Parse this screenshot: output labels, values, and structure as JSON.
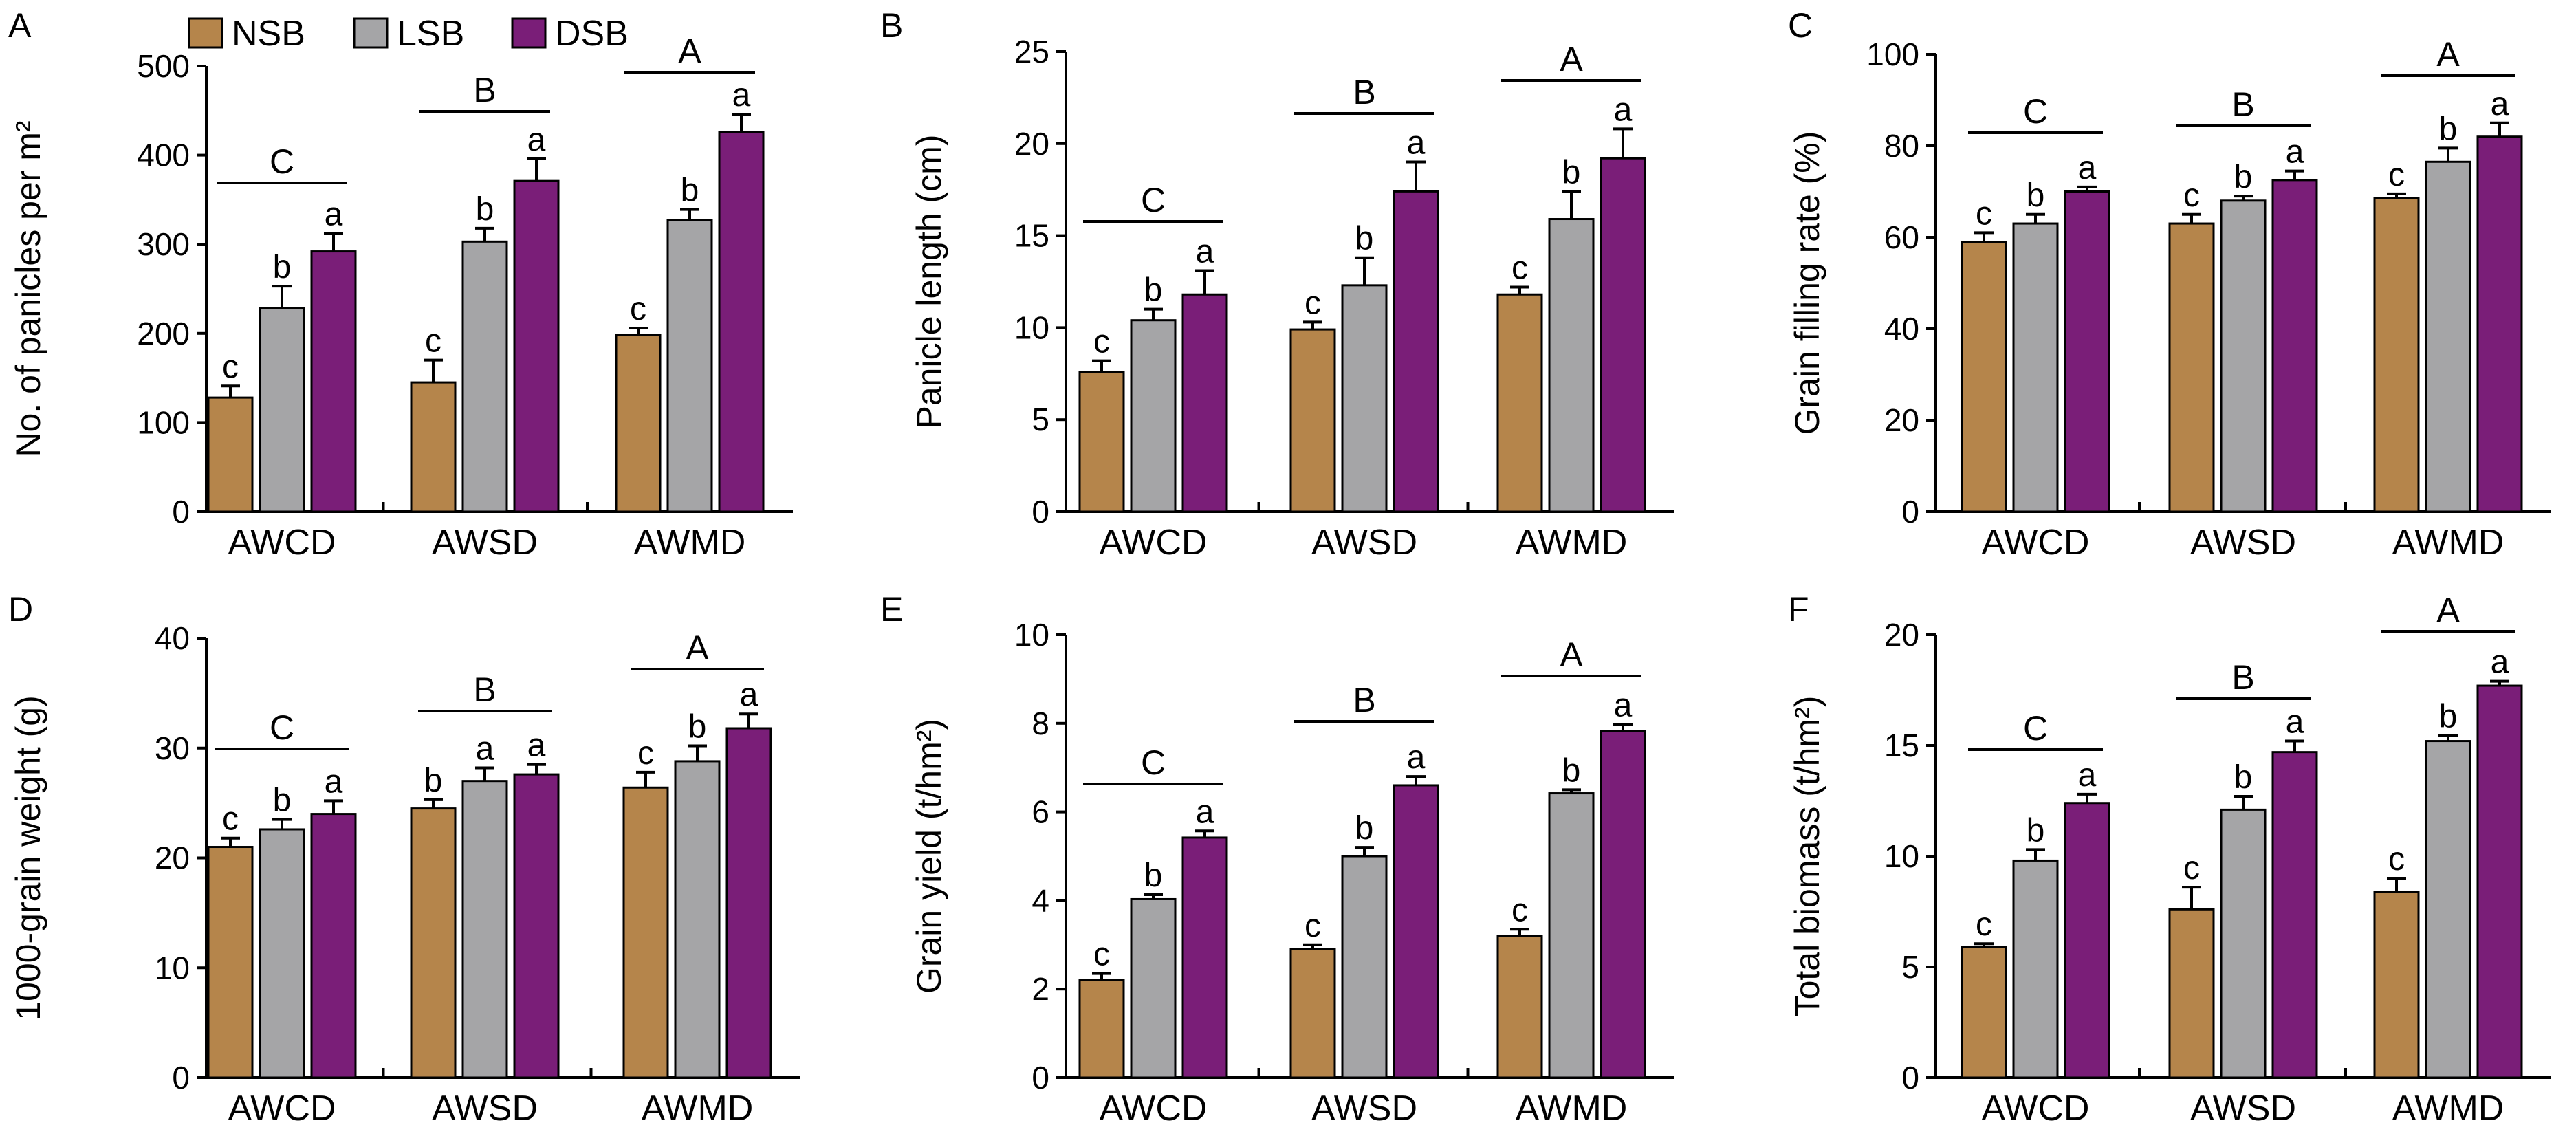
{
  "legend": [
    {
      "label": "NSB",
      "color": "#b5854b"
    },
    {
      "label": "LSB",
      "color": "#a5a5a7"
    },
    {
      "label": "DSB",
      "color": "#7a1e78"
    }
  ],
  "chart_data": [
    {
      "panel": "A",
      "type": "bar",
      "categories": [
        "AWCD",
        "AWSD",
        "AWMD"
      ],
      "ylabel": "No. of panicles per m²",
      "ylim": [
        0,
        500
      ],
      "yticks": [
        0,
        100,
        200,
        300,
        400,
        500
      ],
      "series": [
        {
          "name": "NSB",
          "values": [
            128,
            145,
            198
          ],
          "errors": [
            13,
            25,
            8
          ],
          "letters": [
            "c",
            "c",
            "c"
          ]
        },
        {
          "name": "LSB",
          "values": [
            228,
            303,
            327
          ],
          "errors": [
            25,
            15,
            12
          ],
          "letters": [
            "b",
            "b",
            "b"
          ]
        },
        {
          "name": "DSB",
          "values": [
            292,
            371,
            426
          ],
          "errors": [
            20,
            25,
            20
          ],
          "letters": [
            "a",
            "a",
            "a"
          ]
        }
      ],
      "group_letters": [
        "C",
        "B",
        "A"
      ]
    },
    {
      "panel": "B",
      "type": "bar",
      "categories": [
        "AWCD",
        "AWSD",
        "AWMD"
      ],
      "ylabel": "Panicle length (cm)",
      "ylim": [
        0,
        25
      ],
      "yticks": [
        0,
        5,
        10,
        15,
        20,
        25
      ],
      "series": [
        {
          "name": "NSB",
          "values": [
            7.6,
            9.9,
            11.8
          ],
          "errors": [
            0.6,
            0.4,
            0.4
          ],
          "letters": [
            "c",
            "c",
            "c"
          ]
        },
        {
          "name": "LSB",
          "values": [
            10.4,
            12.3,
            15.9
          ],
          "errors": [
            0.6,
            1.5,
            1.5
          ],
          "letters": [
            "b",
            "b",
            "b"
          ]
        },
        {
          "name": "DSB",
          "values": [
            11.8,
            17.4,
            19.2
          ],
          "errors": [
            1.3,
            1.6,
            1.6
          ],
          "letters": [
            "a",
            "a",
            "a"
          ]
        }
      ],
      "group_letters": [
        "C",
        "B",
        "A"
      ]
    },
    {
      "panel": "C",
      "type": "bar",
      "categories": [
        "AWCD",
        "AWSD",
        "AWMD"
      ],
      "ylabel": "Grain filling rate (%)",
      "ylim": [
        0,
        100
      ],
      "yticks": [
        0,
        20,
        40,
        60,
        80,
        100
      ],
      "series": [
        {
          "name": "NSB",
          "values": [
            59,
            63,
            68.5
          ],
          "errors": [
            2,
            2,
            1
          ],
          "letters": [
            "c",
            "c",
            "c"
          ]
        },
        {
          "name": "LSB",
          "values": [
            63,
            68,
            76.5
          ],
          "errors": [
            2,
            1,
            3
          ],
          "letters": [
            "b",
            "b",
            "b"
          ]
        },
        {
          "name": "DSB",
          "values": [
            70,
            72.5,
            82
          ],
          "errors": [
            1,
            2,
            3
          ],
          "letters": [
            "a",
            "a",
            "a"
          ]
        }
      ],
      "group_letters": [
        "C",
        "B",
        "A"
      ]
    },
    {
      "panel": "D",
      "type": "bar",
      "categories": [
        "AWCD",
        "AWSD",
        "AWMD"
      ],
      "ylabel": "1000-grain weight (g)",
      "ylim": [
        0,
        40
      ],
      "yticks": [
        0,
        10,
        20,
        30,
        40
      ],
      "series": [
        {
          "name": "NSB",
          "values": [
            21,
            24.5,
            26.4
          ],
          "errors": [
            0.8,
            0.8,
            1.4
          ],
          "letters": [
            "c",
            "b",
            "c"
          ]
        },
        {
          "name": "LSB",
          "values": [
            22.6,
            27,
            28.8
          ],
          "errors": [
            0.9,
            1.2,
            1.4
          ],
          "letters": [
            "b",
            "a",
            "b"
          ]
        },
        {
          "name": "DSB",
          "values": [
            24,
            27.6,
            31.8
          ],
          "errors": [
            1.2,
            0.9,
            1.3
          ],
          "letters": [
            "a",
            "a",
            "a"
          ]
        }
      ],
      "group_letters": [
        "C",
        "B",
        "A"
      ]
    },
    {
      "panel": "E",
      "type": "bar",
      "categories": [
        "AWCD",
        "AWSD",
        "AWMD"
      ],
      "ylabel": "Grain yield (t/hm²)",
      "ylim": [
        0,
        10
      ],
      "yticks": [
        0,
        2,
        4,
        6,
        8,
        10
      ],
      "series": [
        {
          "name": "NSB",
          "values": [
            2.2,
            2.9,
            3.2
          ],
          "errors": [
            0.15,
            0.1,
            0.15
          ],
          "letters": [
            "c",
            "c",
            "c"
          ]
        },
        {
          "name": "LSB",
          "values": [
            4.03,
            5,
            6.42
          ],
          "errors": [
            0.1,
            0.2,
            0.08
          ],
          "letters": [
            "b",
            "b",
            "b"
          ]
        },
        {
          "name": "DSB",
          "values": [
            5.42,
            6.6,
            7.82
          ],
          "errors": [
            0.15,
            0.2,
            0.15
          ],
          "letters": [
            "a",
            "a",
            "a"
          ]
        }
      ],
      "group_letters": [
        "C",
        "B",
        "A"
      ]
    },
    {
      "panel": "F",
      "type": "bar",
      "categories": [
        "AWCD",
        "AWSD",
        "AWMD"
      ],
      "ylabel": "Total biomass (t/hm²)",
      "ylim": [
        0,
        20
      ],
      "yticks": [
        0,
        5,
        10,
        15,
        20
      ],
      "series": [
        {
          "name": "NSB",
          "values": [
            5.9,
            7.6,
            8.4
          ],
          "errors": [
            0.15,
            1,
            0.6
          ],
          "letters": [
            "c",
            "c",
            "c"
          ]
        },
        {
          "name": "LSB",
          "values": [
            9.8,
            12.1,
            15.2
          ],
          "errors": [
            0.5,
            0.6,
            0.25
          ],
          "letters": [
            "b",
            "b",
            "b"
          ]
        },
        {
          "name": "DSB",
          "values": [
            12.4,
            14.7,
            17.7
          ],
          "errors": [
            0.4,
            0.5,
            0.2
          ],
          "letters": [
            "a",
            "a",
            "a"
          ]
        }
      ],
      "group_letters": [
        "C",
        "B",
        "A"
      ]
    }
  ]
}
